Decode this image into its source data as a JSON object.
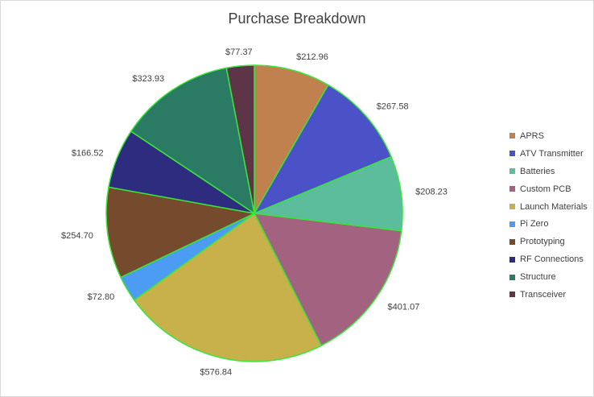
{
  "chart_data": {
    "type": "pie",
    "title": "Purchase Breakdown",
    "legend_position": "right",
    "labels": [
      "APRS",
      "ATV Transmitter",
      "Batteries",
      "Custom PCB",
      "Launch Materials",
      "Pi Zero",
      "Prototyping",
      "RF Connections",
      "Structure",
      "Transceiver"
    ],
    "values": [
      212.96,
      267.58,
      208.23,
      401.07,
      576.84,
      72.8,
      254.7,
      166.52,
      323.93,
      77.37
    ],
    "data_labels": [
      "$212.96",
      "$267.58",
      "$208.23",
      "$401.07",
      "$576.84",
      "$72.80",
      "$254.70",
      "$166.52",
      "$323.93",
      "$77.37"
    ],
    "colors": [
      "#c0814e",
      "#4b51c6",
      "#5bbd9b",
      "#a3627f",
      "#c8b04a",
      "#4b9cf2",
      "#764a2c",
      "#2d2c7e",
      "#2b7a63",
      "#5e3547"
    ],
    "slice_border_color": "#39e63a"
  }
}
